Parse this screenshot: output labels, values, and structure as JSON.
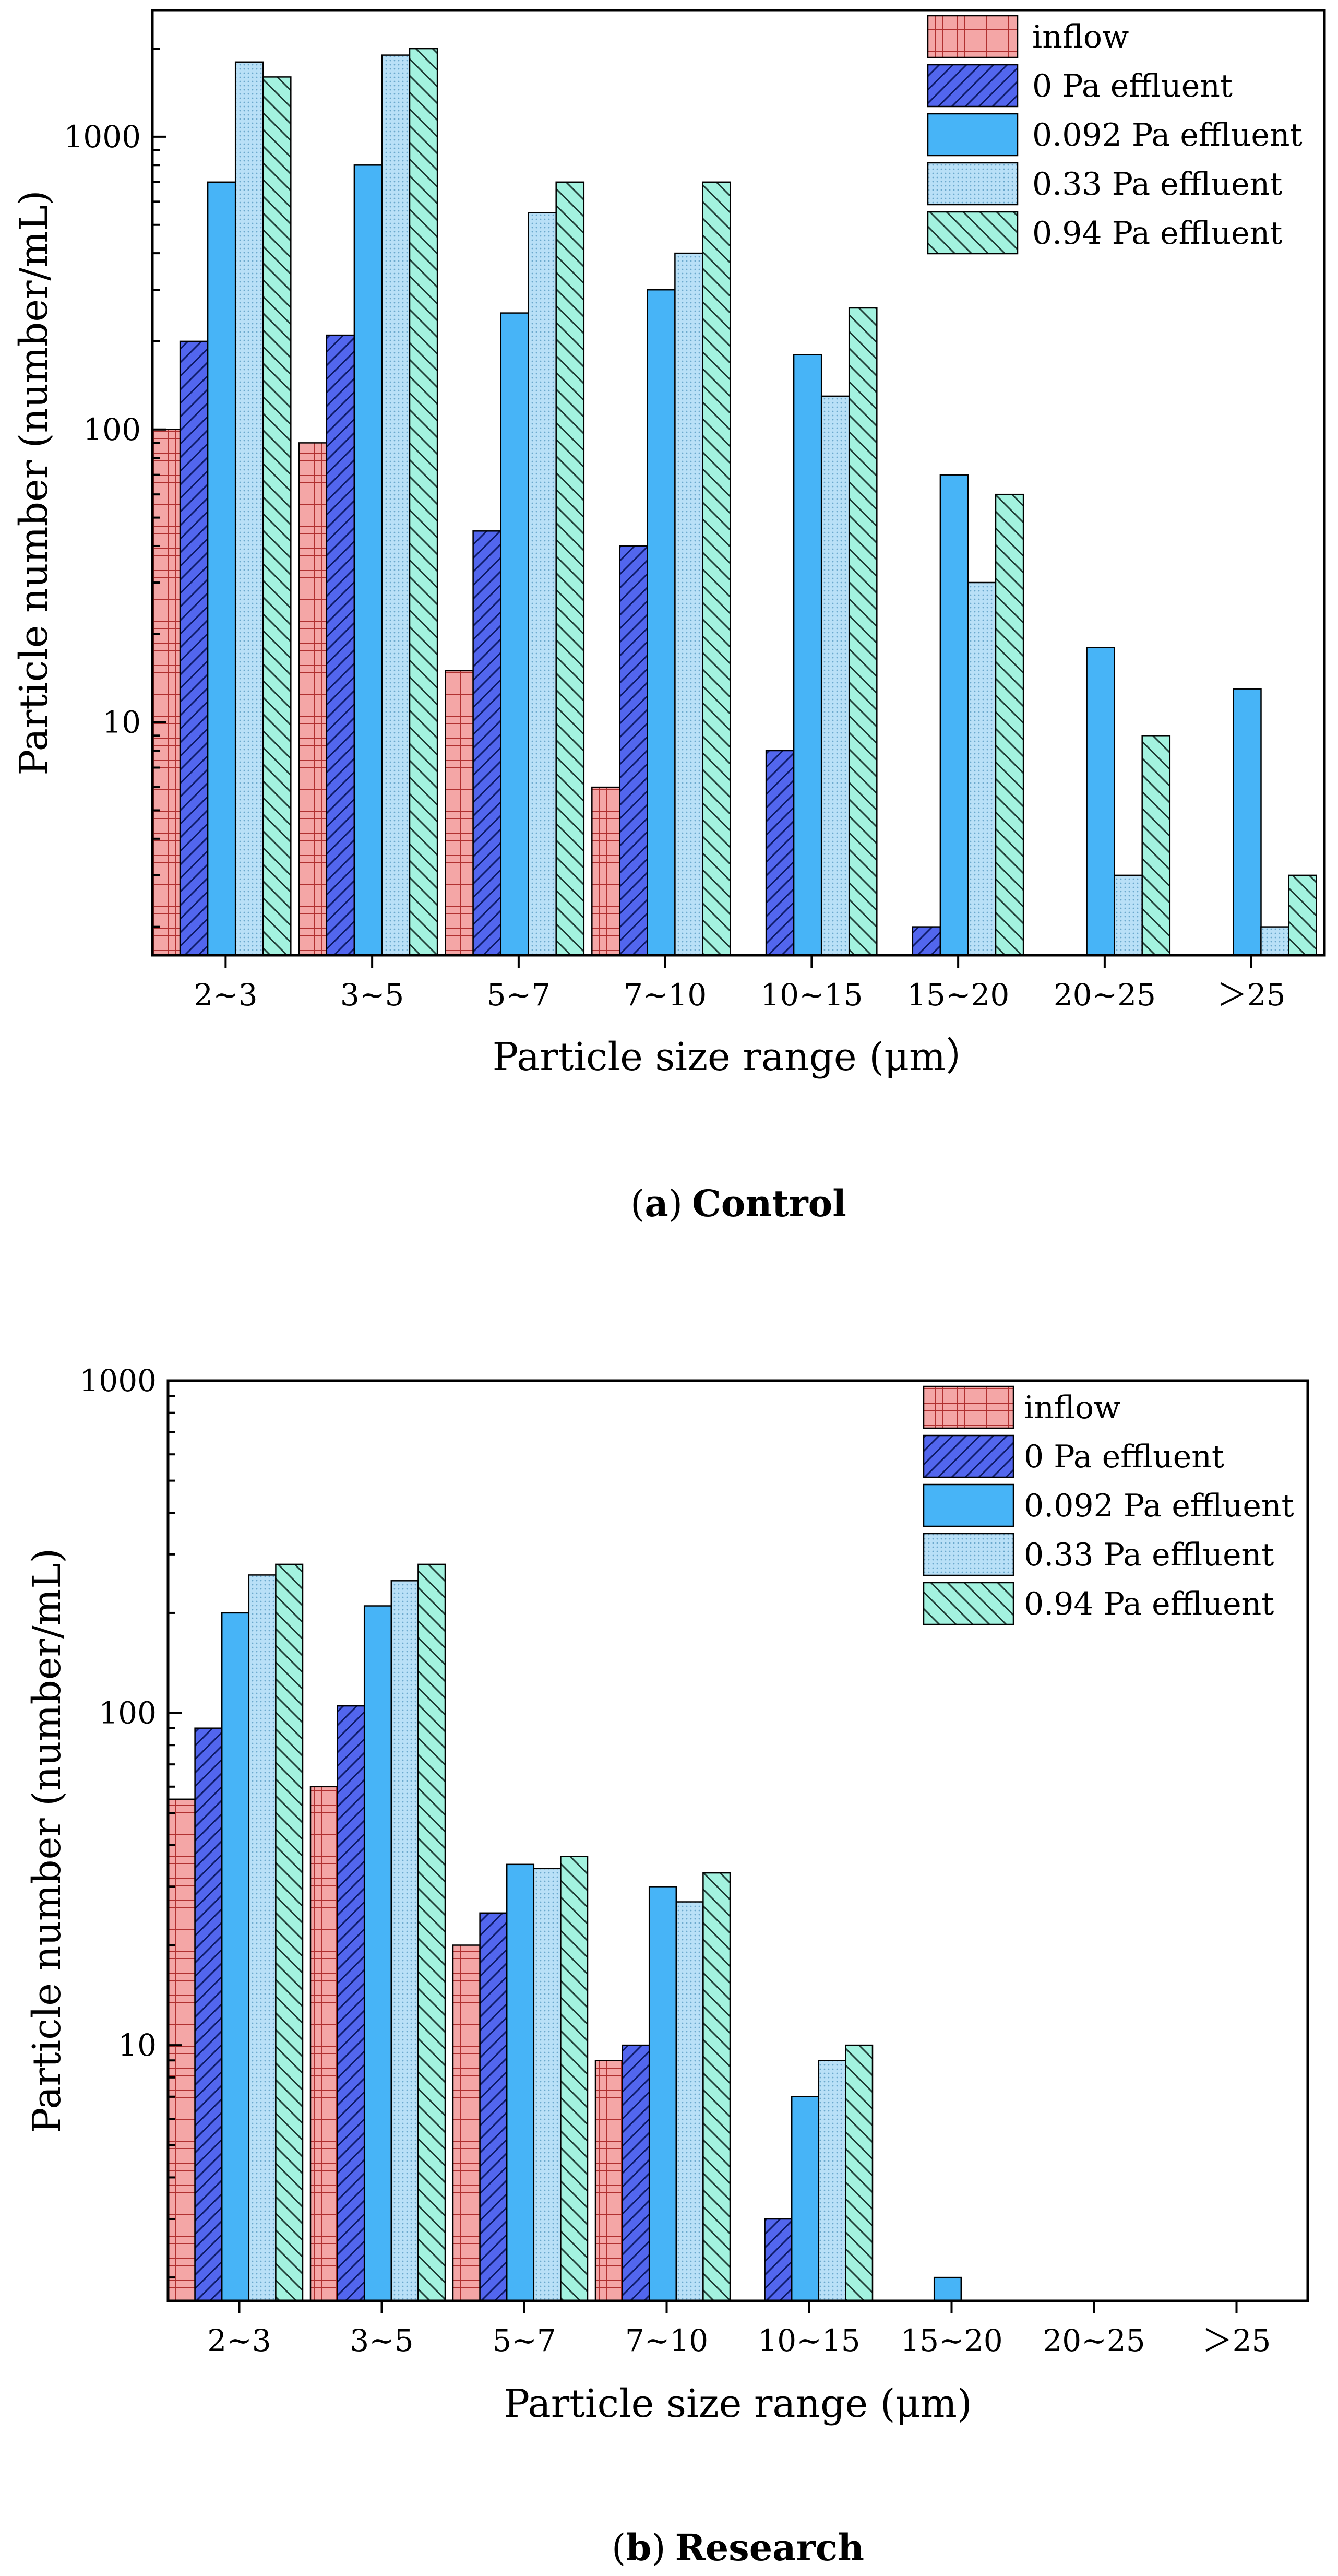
{
  "chart_data": [
    {
      "type": "bar",
      "panel": "a",
      "yscale": "log",
      "ylim": [
        1.6,
        2700
      ],
      "yticks": [
        10,
        100,
        1000
      ],
      "ytick_labels": [
        "10",
        "100",
        "1000"
      ],
      "title": "",
      "caption_prefix": "(",
      "caption_letter": "a",
      "caption_close": ")",
      "caption_name": "Control",
      "xlabel": "Particle size range (μm）",
      "ylabel": "Particle number (number/mL)",
      "legend_position": "top-right",
      "categories": [
        "2~3",
        "3~5",
        "5~7",
        "7~10",
        "10~15",
        "15~20",
        "20~25",
        "＞25"
      ],
      "series": [
        {
          "name": "inflow",
          "values": [
            100,
            90,
            15,
            6,
            null,
            null,
            null,
            null
          ]
        },
        {
          "name": "0  Pa effluent",
          "values": [
            200,
            210,
            45,
            40,
            8,
            2,
            null,
            null
          ]
        },
        {
          "name": "0.092  Pa effluent",
          "values": [
            700,
            800,
            250,
            300,
            180,
            70,
            18,
            13
          ]
        },
        {
          "name": "0.33  Pa effluent",
          "values": [
            1800,
            1900,
            550,
            400,
            130,
            30,
            3,
            2
          ]
        },
        {
          "name": "0.94  Pa effluent",
          "values": [
            1600,
            2000,
            700,
            700,
            260,
            60,
            9,
            3
          ]
        }
      ]
    },
    {
      "type": "bar",
      "panel": "b",
      "yscale": "log",
      "ylim": [
        1.7,
        1000
      ],
      "yticks": [
        10,
        100,
        1000
      ],
      "ytick_labels": [
        "10",
        "100",
        "1000"
      ],
      "title": "",
      "caption_prefix": "(",
      "caption_letter": "b",
      "caption_close": ")",
      "caption_name": "Research",
      "xlabel": "Particle size range (μm)",
      "ylabel": "Particle number (number/mL)",
      "legend_position": "top-right",
      "categories": [
        "2~3",
        "3~5",
        "5~7",
        "7~10",
        "10~15",
        "15~20",
        "20~25",
        "＞25"
      ],
      "series": [
        {
          "name": "inflow",
          "values": [
            55,
            60,
            20,
            9,
            null,
            null,
            null,
            null
          ]
        },
        {
          "name": "0  Pa effluent",
          "values": [
            90,
            105,
            25,
            10,
            3,
            null,
            null,
            null
          ]
        },
        {
          "name": "0.092  Pa effluent",
          "values": [
            200,
            210,
            35,
            30,
            7,
            2,
            null,
            null
          ]
        },
        {
          "name": "0.33  Pa effluent",
          "values": [
            260,
            250,
            34,
            27,
            9,
            null,
            null,
            null
          ]
        },
        {
          "name": "0.94  Pa effluent",
          "values": [
            280,
            280,
            37,
            33,
            10,
            null,
            null,
            null
          ]
        }
      ]
    }
  ],
  "series_colors": [
    "#F4A6A6",
    "#5266EE",
    "#47B4F7",
    "#B9E0F7",
    "#A3F2DF"
  ]
}
